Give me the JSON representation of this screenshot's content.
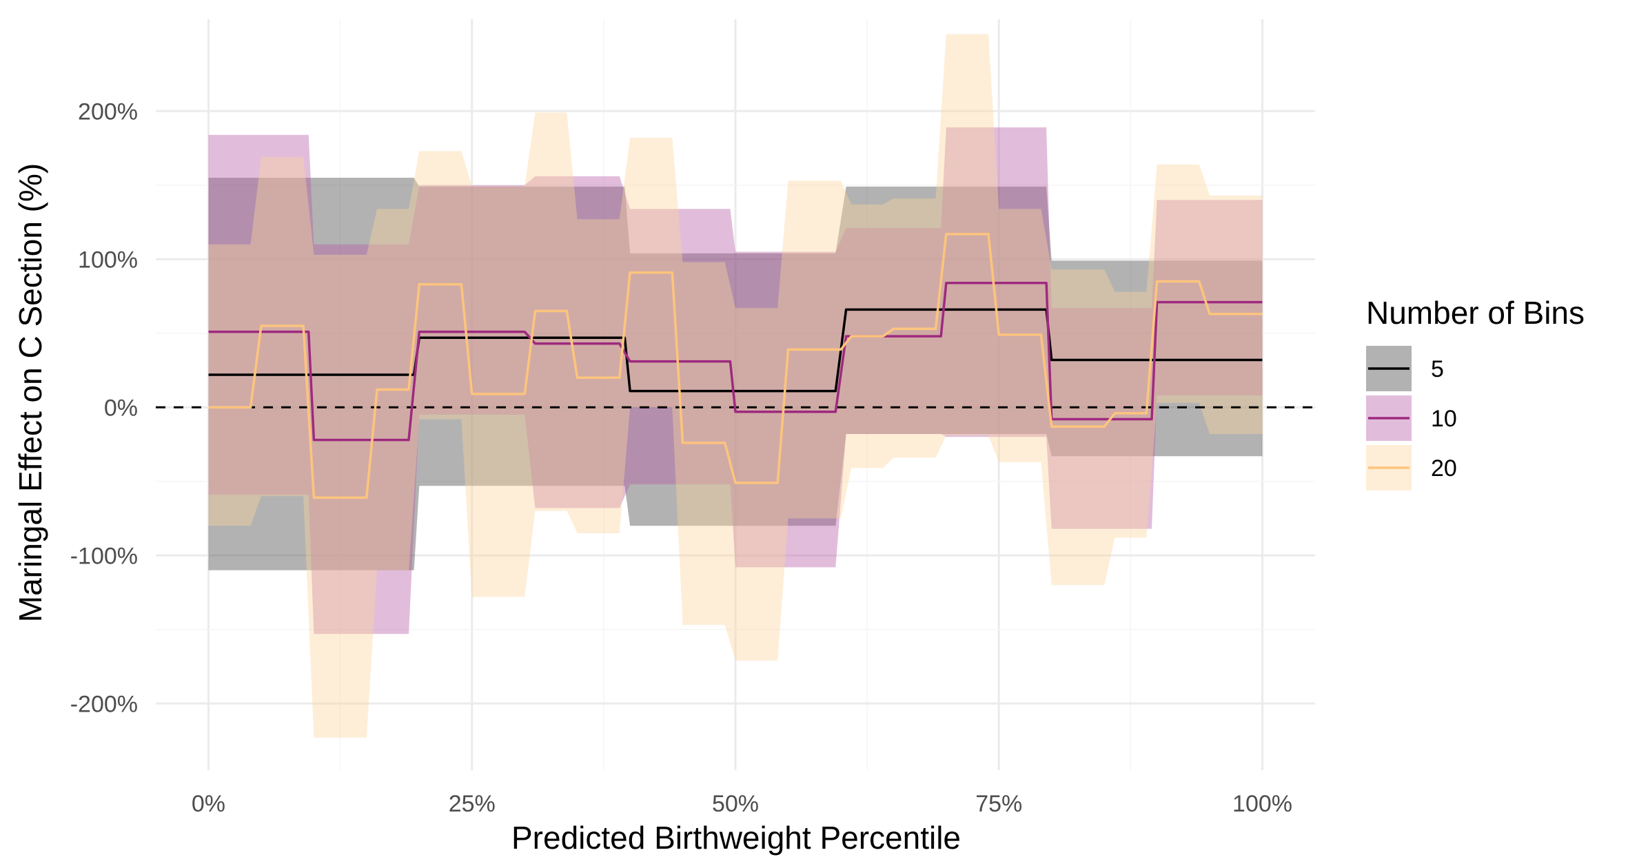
{
  "chart_data": {
    "type": "line",
    "xlabel": "Predicted Birthweight Percentile",
    "ylabel": "Maringal Effect on C Section (%)",
    "xlim": [
      -5,
      105
    ],
    "ylim": [
      -245,
      262
    ],
    "x_ticks": [
      0,
      25,
      50,
      75,
      100
    ],
    "x_tick_labels": [
      "0%",
      "25%",
      "50%",
      "75%",
      "100%"
    ],
    "y_ticks": [
      -200,
      -100,
      0,
      100,
      200
    ],
    "y_tick_labels": [
      "-200%",
      "-100%",
      "0%",
      "100%",
      "200%"
    ],
    "reference_line": {
      "y": 0,
      "style": "dashed"
    },
    "grid": true,
    "legend": {
      "title": "Number of Bins",
      "position": "right"
    },
    "series": [
      {
        "name": "5",
        "line_color": "#000000",
        "band_color": "#555555",
        "band_opacity": 0.45,
        "bins": [
          {
            "x0": 0,
            "x1": 19.5,
            "est": 22,
            "lo": -110,
            "hi": 155
          },
          {
            "x0": 20,
            "x1": 39.5,
            "est": 47,
            "lo": -53,
            "hi": 149
          },
          {
            "x0": 40,
            "x1": 59.5,
            "est": 11,
            "lo": -80,
            "hi": 104
          },
          {
            "x0": 60.5,
            "x1": 79.5,
            "est": 66,
            "lo": -18,
            "hi": 149
          },
          {
            "x0": 80,
            "x1": 100,
            "est": 32,
            "lo": -33,
            "hi": 99
          }
        ]
      },
      {
        "name": "10",
        "line_color": "#9e2a7e",
        "band_color": "#b55aa6",
        "band_opacity": 0.4,
        "bins": [
          {
            "x0": 0,
            "x1": 9.5,
            "est": 51,
            "lo": -59,
            "hi": 184
          },
          {
            "x0": 10,
            "x1": 19,
            "est": -22,
            "lo": -153,
            "hi": 110
          },
          {
            "x0": 20,
            "x1": 30,
            "est": 51,
            "lo": -5,
            "hi": 150
          },
          {
            "x0": 31,
            "x1": 39,
            "est": 43,
            "lo": -68,
            "hi": 156
          },
          {
            "x0": 40,
            "x1": 49.5,
            "est": 31,
            "lo": -52,
            "hi": 134
          },
          {
            "x0": 50,
            "x1": 59.5,
            "est": -3,
            "lo": -108,
            "hi": 105
          },
          {
            "x0": 60.5,
            "x1": 69.5,
            "est": 48,
            "lo": -18,
            "hi": 121
          },
          {
            "x0": 70,
            "x1": 79.5,
            "est": 84,
            "lo": -20,
            "hi": 189
          },
          {
            "x0": 80,
            "x1": 89.5,
            "est": -8,
            "lo": -82,
            "hi": 67
          },
          {
            "x0": 90,
            "x1": 100,
            "est": 71,
            "lo": 8,
            "hi": 140
          }
        ]
      },
      {
        "name": "20",
        "line_color": "#fdc47d",
        "band_color": "#fdd59b",
        "band_opacity": 0.4,
        "bins": [
          {
            "x0": 0,
            "x1": 4,
            "est": 0,
            "lo": -80,
            "hi": 110
          },
          {
            "x0": 5,
            "x1": 9,
            "est": 55,
            "lo": -60,
            "hi": 169
          },
          {
            "x0": 10,
            "x1": 15,
            "est": -61,
            "lo": -223,
            "hi": 103
          },
          {
            "x0": 16,
            "x1": 19,
            "est": 12,
            "lo": -110,
            "hi": 134
          },
          {
            "x0": 20,
            "x1": 24,
            "est": 83,
            "lo": -8,
            "hi": 173
          },
          {
            "x0": 25,
            "x1": 30,
            "est": 9,
            "lo": -128,
            "hi": 149
          },
          {
            "x0": 31,
            "x1": 34,
            "est": 65,
            "lo": -70,
            "hi": 199
          },
          {
            "x0": 35,
            "x1": 39,
            "est": 20,
            "lo": -85,
            "hi": 127
          },
          {
            "x0": 40,
            "x1": 44,
            "est": 91,
            "lo": 0,
            "hi": 182
          },
          {
            "x0": 45,
            "x1": 49,
            "est": -24,
            "lo": -147,
            "hi": 98
          },
          {
            "x0": 50,
            "x1": 54,
            "est": -51,
            "lo": -171,
            "hi": 67
          },
          {
            "x0": 55,
            "x1": 60,
            "est": 39,
            "lo": -75,
            "hi": 153
          },
          {
            "x0": 61,
            "x1": 64,
            "est": 48,
            "lo": -41,
            "hi": 137
          },
          {
            "x0": 65,
            "x1": 69,
            "est": 53,
            "lo": -34,
            "hi": 141
          },
          {
            "x0": 70,
            "x1": 74,
            "est": 117,
            "lo": -19,
            "hi": 252
          },
          {
            "x0": 75,
            "x1": 79,
            "est": 49,
            "lo": -37,
            "hi": 134
          },
          {
            "x0": 80,
            "x1": 85,
            "est": -13,
            "lo": -120,
            "hi": 93
          },
          {
            "x0": 86,
            "x1": 89,
            "est": -4,
            "lo": -88,
            "hi": 78
          },
          {
            "x0": 90,
            "x1": 94,
            "est": 85,
            "lo": 3,
            "hi": 164
          },
          {
            "x0": 95,
            "x1": 100,
            "est": 63,
            "lo": -18,
            "hi": 143
          }
        ]
      }
    ]
  }
}
